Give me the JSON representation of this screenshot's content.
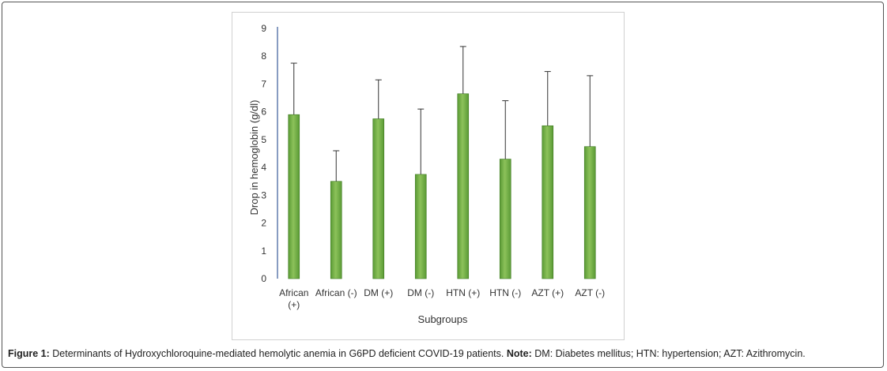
{
  "caption": {
    "label": "Figure 1:",
    "text": " Determinants of Hydroxychloroquine-mediated hemolytic anemia in G6PD deficient COVID-19 patients. ",
    "note_label": "Note:",
    "note_text": "  DM: Diabetes mellitus; HTN: hypertension; AZT: Azithromycin."
  },
  "chart_data": {
    "type": "bar",
    "categories": [
      [
        "African",
        "(+)"
      ],
      [
        "African (-)"
      ],
      [
        "DM (+)"
      ],
      [
        "DM (-)"
      ],
      [
        "HTN (+)"
      ],
      [
        "HTN (-)"
      ],
      [
        "AZT (+)"
      ],
      [
        "AZT (-)"
      ]
    ],
    "values": [
      5.9,
      3.5,
      5.75,
      3.75,
      6.65,
      4.3,
      5.5,
      4.75
    ],
    "error_upper": [
      7.75,
      4.6,
      7.15,
      6.1,
      8.35,
      6.4,
      7.45,
      7.3
    ],
    "xlabel": "Subgroups",
    "ylabel": "Drop in hemoglobin  (g/dl)",
    "ylim": [
      0,
      9
    ],
    "yticks": [
      0,
      1,
      2,
      3,
      4,
      5,
      6,
      7,
      8,
      9
    ],
    "grid": false,
    "bar_color": "#5a9a35",
    "bar_highlight": "#8cc25a",
    "axis_color": "#3a5a9a"
  }
}
